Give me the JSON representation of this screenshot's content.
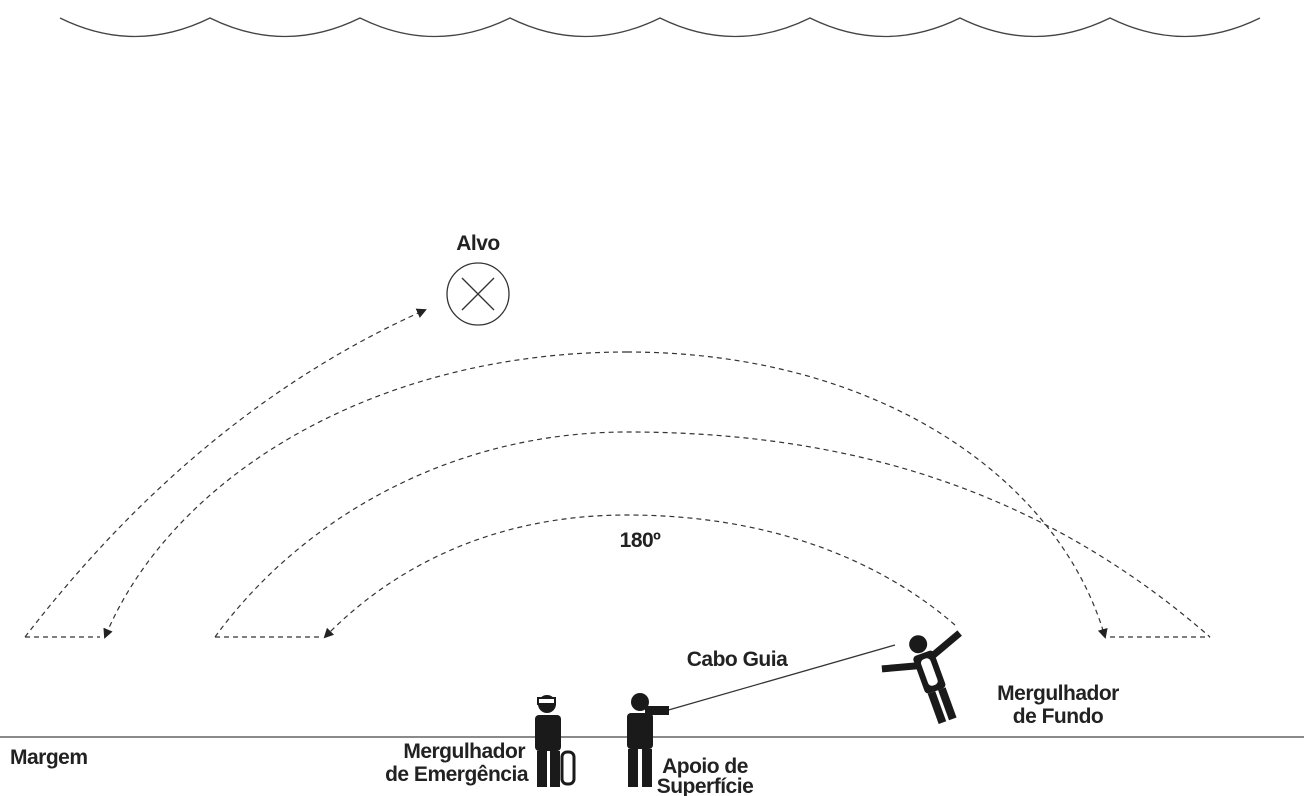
{
  "labels": {
    "target": "Alvo",
    "angle": "180º",
    "guide_rope": "Cabo Guia",
    "bottom_diver": [
      "Mergulhador",
      "de Fundo"
    ],
    "margin": "Margem",
    "emergency_diver": [
      "Mergulhador",
      "de Emergência"
    ],
    "surface_support": [
      "Apoio de",
      "Superfície"
    ]
  }
}
